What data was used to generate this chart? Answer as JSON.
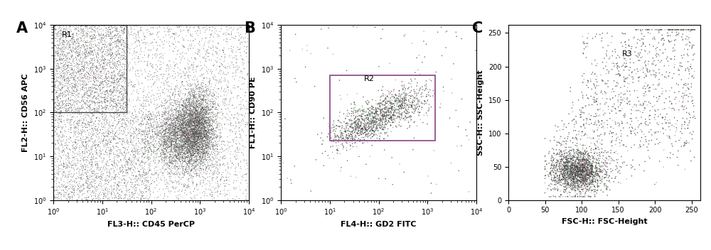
{
  "panel_A": {
    "label": "A",
    "xlabel": "FL3-H:: CD45 PerCP",
    "ylabel": "FL2-H:: CD56 APC",
    "gate_label": "R1",
    "gate_x0_log": 0.0,
    "gate_x1_log": 1.5,
    "gate_y0_log": 2.0,
    "gate_y1_log": 4.0
  },
  "panel_B": {
    "label": "B",
    "xlabel": "FL4-H:: GD2 FITC",
    "ylabel": "FL1-H:: CD90 PE",
    "gate_label": "R2",
    "gate_x0_log": 1.0,
    "gate_x1_log": 3.15,
    "gate_y0_log": 1.35,
    "gate_y1_log": 2.85
  },
  "panel_C": {
    "label": "C",
    "xlabel": "FSC-H:: FSC-Height",
    "ylabel": "SSC-H:: SSC-Height",
    "gate_label": "R3",
    "xlim": [
      0,
      262
    ],
    "ylim": [
      0,
      262
    ],
    "xticks": [
      0,
      50,
      100,
      150,
      200,
      250
    ],
    "yticks": [
      0,
      50,
      100,
      150,
      200,
      250
    ]
  },
  "log_xlim": [
    1.0,
    10000.0
  ],
  "log_ylim": [
    1.0,
    10000.0
  ],
  "dot_color_main": "#404040",
  "dot_color_green": "#7aaa7a",
  "dot_color_pink": "#cc88aa",
  "dot_color_gray": "#aaaaaa",
  "gate_color_A": "#444444",
  "gate_color_B": "#884488",
  "background_color": "#ffffff",
  "label_fontsize": 15,
  "axis_label_fontsize": 8,
  "tick_fontsize": 7
}
